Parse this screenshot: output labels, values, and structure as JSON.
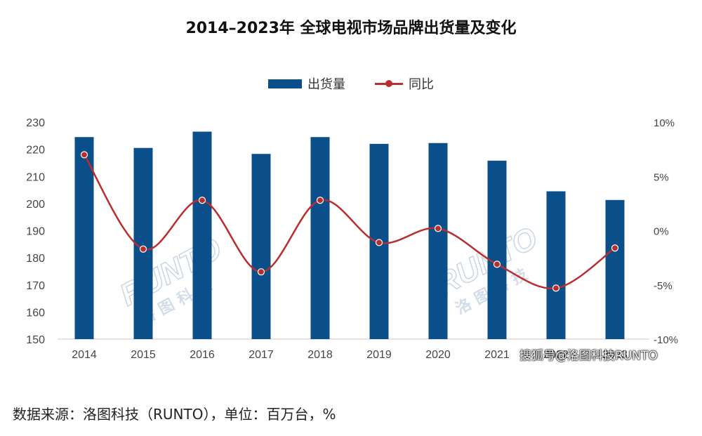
{
  "chart_data": {
    "type": "bar",
    "title": "2014–2023年 全球电视市场品牌出货量及变化",
    "categories": [
      "2014",
      "2015",
      "2016",
      "2017",
      "2018",
      "2019",
      "2020",
      "2021",
      "2022",
      "2023"
    ],
    "series": [
      {
        "name": "出货量",
        "type": "bar",
        "axis": "left",
        "color": "#0b4f8a",
        "values": [
          224.5,
          220.5,
          226.5,
          218.3,
          224.5,
          222.0,
          222.3,
          215.8,
          204.5,
          201.3
        ]
      },
      {
        "name": "同比",
        "type": "line",
        "axis": "right",
        "color": "#b82e2e",
        "values": [
          7.0,
          -1.7,
          2.8,
          -3.8,
          2.8,
          -1.1,
          0.2,
          -3.1,
          -5.3,
          -1.6
        ]
      }
    ],
    "left_axis": {
      "ylim": [
        150,
        230
      ],
      "ticks": [
        "230",
        "220",
        "210",
        "200",
        "190",
        "180",
        "170",
        "160",
        "150"
      ]
    },
    "right_axis": {
      "ylim": [
        -10,
        10
      ],
      "ticks": [
        "10%",
        "5%",
        "0%",
        "-5%",
        "-10%"
      ]
    },
    "legend_position": "top-center",
    "grid": false
  },
  "source_note": "数据来源：洛图科技（RUNTO），单位：百万台，%",
  "watermarks": {
    "logo_text": "RUNTO",
    "logo_cn": "洛图科技",
    "bottom_right": "搜狐号@洛图科技RUNTO"
  }
}
